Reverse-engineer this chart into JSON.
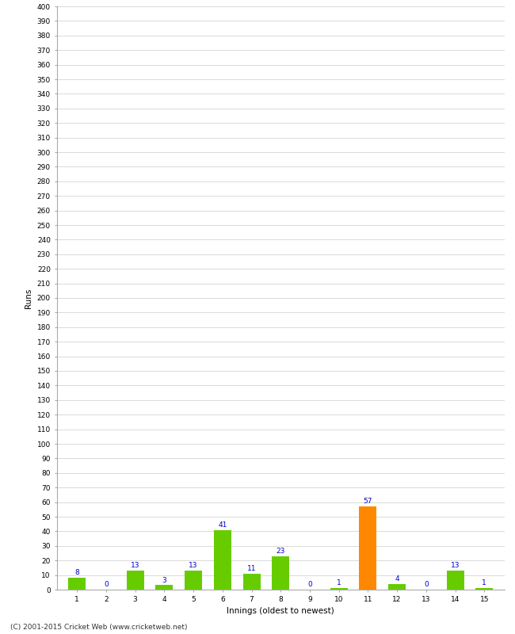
{
  "xlabel": "Innings (oldest to newest)",
  "ylabel": "Runs",
  "categories": [
    1,
    2,
    3,
    4,
    5,
    6,
    7,
    8,
    9,
    10,
    11,
    12,
    13,
    14,
    15
  ],
  "values": [
    8,
    0,
    13,
    3,
    13,
    41,
    11,
    23,
    0,
    1,
    57,
    4,
    0,
    13,
    1
  ],
  "bar_colors": [
    "#66cc00",
    "#66cc00",
    "#66cc00",
    "#66cc00",
    "#66cc00",
    "#66cc00",
    "#66cc00",
    "#66cc00",
    "#66cc00",
    "#66cc00",
    "#ff8800",
    "#66cc00",
    "#66cc00",
    "#66cc00",
    "#66cc00"
  ],
  "ylim": [
    0,
    400
  ],
  "ytick_step": 10,
  "label_color": "#0000cc",
  "label_fontsize": 6.5,
  "axis_tick_fontsize": 6.5,
  "ylabel_fontsize": 7.5,
  "xlabel_fontsize": 7.5,
  "footer": "(C) 2001-2015 Cricket Web (www.cricketweb.net)",
  "background_color": "#ffffff",
  "grid_color": "#cccccc",
  "bar_width": 0.6
}
